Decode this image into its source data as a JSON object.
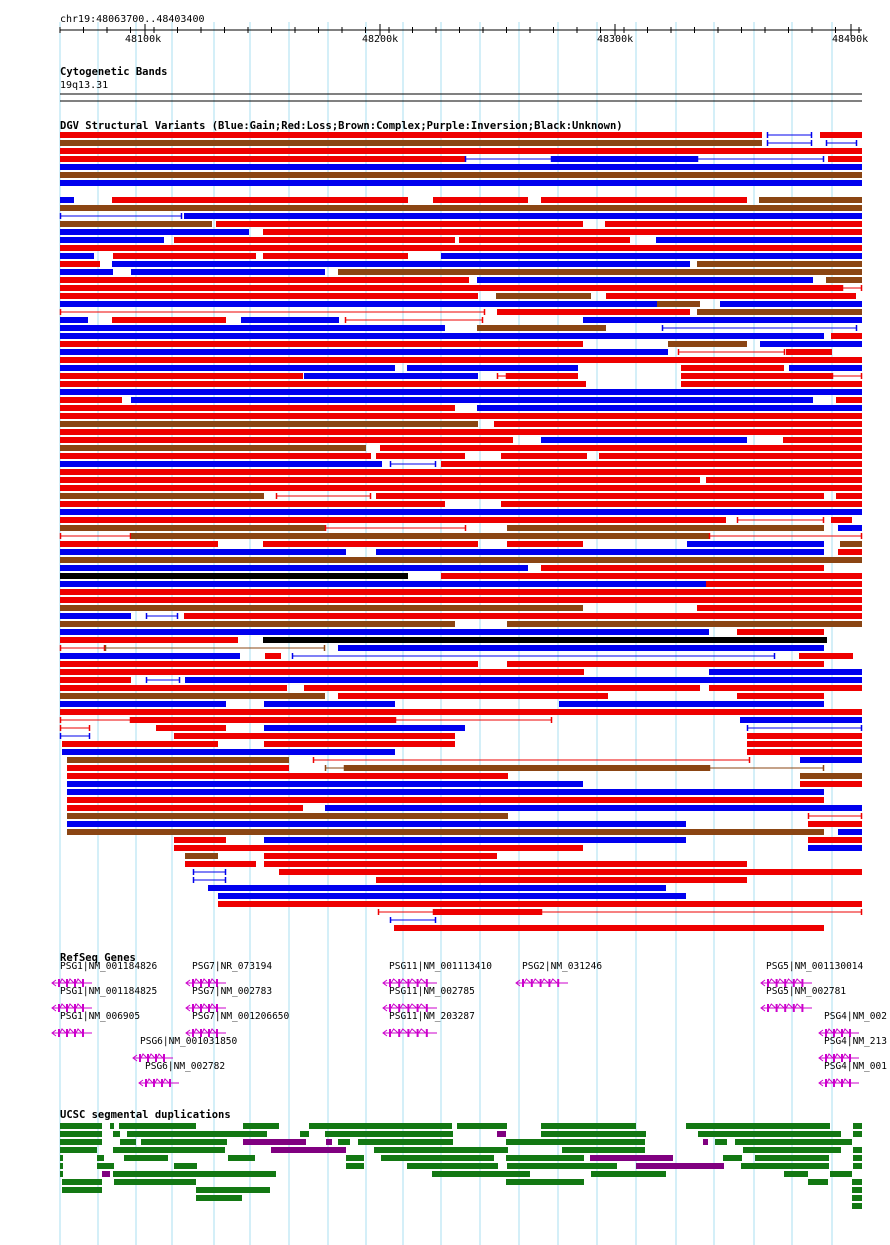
{
  "ruler": {
    "region": "chr19:48063700..48403400",
    "ticks": [
      {
        "pos": 48100000,
        "label": "48100k"
      },
      {
        "pos": 48200000,
        "label": "48200k"
      },
      {
        "pos": 48300000,
        "label": "48300k"
      },
      {
        "pos": 48400000,
        "label": "48400k"
      }
    ],
    "start": 48063700,
    "end": 48403400
  },
  "cytobands": {
    "title": "Cytogenetic Bands",
    "band": "19q13.31"
  },
  "dgv": {
    "title": "DGV Structural Variants (Blue:Gain;Red:Loss;Brown:Complex;Purple:Inversion;Black:Unknown)",
    "colors": {
      "gain": "#0000ee",
      "loss": "#ee0000",
      "complex": "#8b4513",
      "inversion": "#800080",
      "unknown": "#000000"
    }
  },
  "refseq": {
    "title": "RefSeq Genes",
    "genes": [
      {
        "label": "PSG1|NM_001184826"
      },
      {
        "label": "PSG7|NR_073194"
      },
      {
        "label": "PSG11|NM_001113410"
      },
      {
        "label": "PSG2|NM_031246"
      },
      {
        "label": "PSG5|NM_001130014"
      },
      {
        "label": "PSG1|NM_001184825"
      },
      {
        "label": "PSG7|NM_002783"
      },
      {
        "label": "PSG11|NM_002785"
      },
      {
        "label": "PSG5|NM_002781"
      },
      {
        "label": "PSG1|NM_006905"
      },
      {
        "label": "PSG7|NM_001206650"
      },
      {
        "label": "PSG11|NM_203287"
      },
      {
        "label": "PSG4|NM_002"
      },
      {
        "label": "PSG6|NM_001031850"
      },
      {
        "label": "PSG4|NM_213"
      },
      {
        "label": "PSG6|NM_002782"
      },
      {
        "label": "PSG4|NM_001"
      }
    ],
    "color": "#cc00cc"
  },
  "segdups": {
    "title": "UCSC segmental duplications",
    "colors": {
      "green": "#137813",
      "purple": "#800080"
    }
  }
}
